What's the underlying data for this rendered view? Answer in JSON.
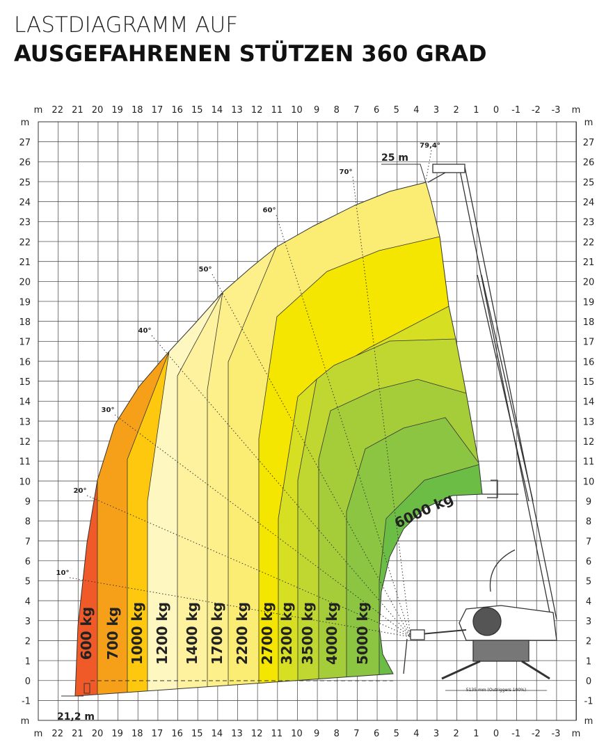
{
  "title": {
    "line1": "LASTDIAGRAMM AUF",
    "line2": "AUSGEFAHRENEN STÜTZEN 360 GRAD"
  },
  "axes": {
    "x_unit": "m",
    "x_labels": [
      22,
      21,
      20,
      19,
      18,
      17,
      16,
      15,
      14,
      13,
      12,
      11,
      10,
      9,
      8,
      7,
      6,
      5,
      4,
      3,
      2,
      1,
      0,
      -1,
      -2,
      -3
    ],
    "y_unit": "m",
    "y_labels": [
      27,
      26,
      25,
      24,
      23,
      22,
      21,
      20,
      19,
      18,
      17,
      16,
      15,
      14,
      13,
      12,
      11,
      10,
      9,
      8,
      7,
      6,
      5,
      4,
      3,
      2,
      1,
      0,
      -1
    ]
  },
  "zones": [
    "600 kg",
    "700 kg",
    "1000 kg",
    "1200 kg",
    "1400 kg",
    "1700 kg",
    "2200 kg",
    "2700 kg",
    "3200 kg",
    "3500 kg",
    "4000 kg",
    "5000 kg",
    "6000 kg"
  ],
  "angles": [
    "10°",
    "20°",
    "30°",
    "40°",
    "50°",
    "60°",
    "70°",
    "79,4°"
  ],
  "annotations": {
    "max_height": "25 m",
    "max_reach": "21,2 m",
    "outrigger_span": "5135 mm (Outriggers 100%)"
  }
}
